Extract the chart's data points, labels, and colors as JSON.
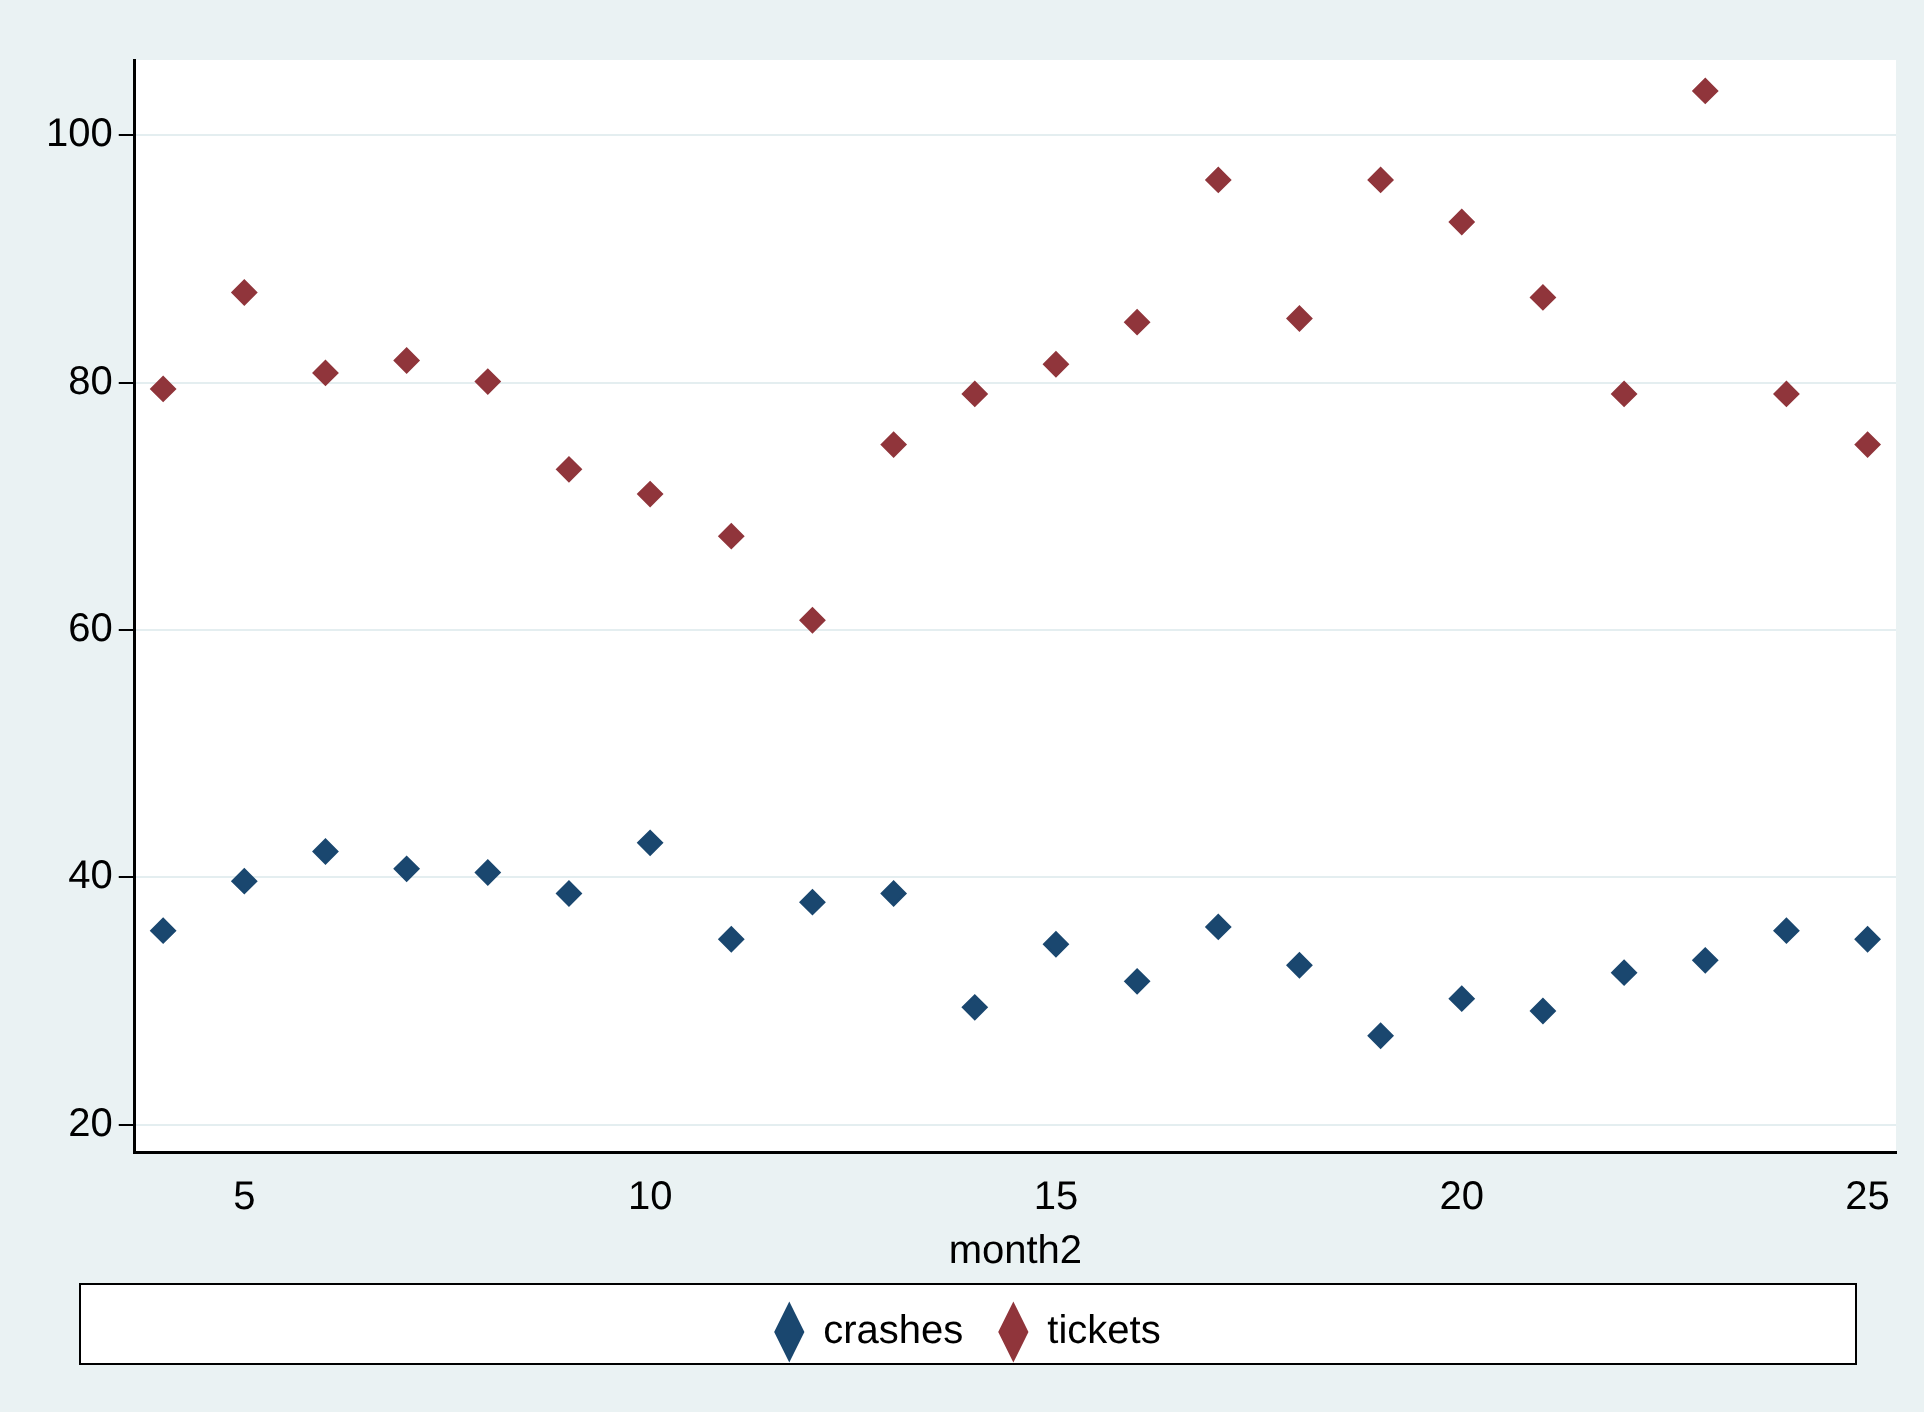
{
  "chart_data": {
    "type": "scatter",
    "xlabel": "month2",
    "x": [
      4,
      5,
      6,
      7,
      8,
      9,
      10,
      11,
      12,
      13,
      14,
      15,
      16,
      17,
      18,
      19,
      20,
      21,
      22,
      23,
      24,
      25
    ],
    "series": [
      {
        "name": "crashes",
        "color": "#1a476f",
        "values": [
          35.7,
          39.7,
          42.1,
          40.7,
          40.4,
          38.7,
          42.8,
          35.0,
          38.0,
          38.7,
          29.5,
          34.6,
          31.6,
          36.0,
          32.9,
          27.2,
          30.2,
          29.2,
          32.3,
          33.3,
          35.7,
          35.0
        ]
      },
      {
        "name": "tickets",
        "color": "#90353b",
        "values": [
          79.5,
          87.3,
          80.8,
          81.8,
          80.1,
          73.0,
          71.0,
          67.6,
          60.8,
          75.0,
          79.1,
          81.5,
          84.9,
          96.4,
          85.2,
          96.4,
          93.0,
          86.9,
          79.1,
          103.6,
          79.1,
          75.0
        ]
      }
    ],
    "xlim": [
      3.65,
      25.35
    ],
    "xticks": [
      5,
      10,
      15,
      20,
      25
    ],
    "ylim": [
      17.8,
      106.1
    ],
    "yticks": [
      20,
      40,
      60,
      80,
      100
    ],
    "grid": "y",
    "legend": "bottom",
    "marker": "diamond"
  }
}
